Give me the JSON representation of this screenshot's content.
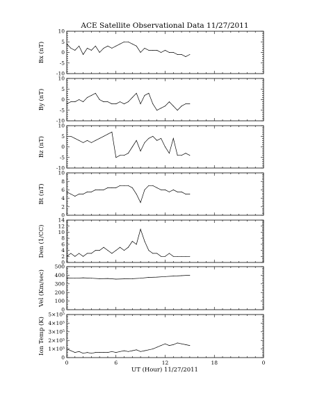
{
  "chart_data": {
    "type": "line",
    "title": "ACE Satellite Observational Data   11/27/2011",
    "xlabel": "UT (Hour)   11/27/2011",
    "xlim": [
      0,
      24
    ],
    "xticks": [
      "0",
      "6",
      "12",
      "18",
      "0"
    ],
    "panels": [
      {
        "ylabel": "Bx (nT)",
        "ylim": [
          -10,
          10
        ],
        "yticks": [
          "10",
          "5",
          "0",
          "-5",
          "-10"
        ],
        "series": [
          {
            "x": [
              0,
              0.5,
              1,
              1.5,
              2,
              2.5,
              3,
              3.5,
              4,
              4.5,
              5,
              5.5,
              6,
              6.5,
              7,
              7.5,
              8,
              8.5,
              9,
              9.5,
              10,
              10.5,
              11,
              11.5,
              12,
              12.5,
              13,
              13.5,
              14,
              14.5,
              15
            ],
            "y": [
              4,
              2,
              1,
              3,
              -1,
              2,
              1,
              3,
              0,
              2,
              3,
              2,
              3,
              4,
              5,
              5,
              4,
              3,
              0,
              2,
              1,
              1,
              1,
              0,
              1,
              0,
              0,
              -1,
              -1,
              -2,
              -1
            ]
          }
        ]
      },
      {
        "ylabel": "By (nT)",
        "ylim": [
          -10,
          10
        ],
        "yticks": [
          "10",
          "5",
          "0",
          "-5",
          "-10"
        ],
        "series": [
          {
            "x": [
              0,
              0.5,
              1,
              1.5,
              2,
              2.5,
              3,
              3.5,
              4,
              4.5,
              5,
              5.5,
              6,
              6.5,
              7,
              7.5,
              8,
              8.5,
              9,
              9.5,
              10,
              10.5,
              11,
              11.5,
              12,
              12.5,
              13,
              13.5,
              14,
              14.5,
              15
            ],
            "y": [
              -2,
              -1,
              -1,
              0,
              -1,
              1,
              2,
              3,
              0,
              -1,
              -1,
              -2,
              -2,
              -1,
              -2,
              -1,
              1,
              3,
              -2,
              2,
              3,
              -2,
              -5,
              -4,
              -3,
              -1,
              -3,
              -5,
              -3,
              -2,
              -2
            ]
          }
        ]
      },
      {
        "ylabel": "Bz (nT)",
        "ylim": [
          -10,
          10
        ],
        "yticks": [
          "10",
          "5",
          "0",
          "-5",
          "-10"
        ],
        "series": [
          {
            "x": [
              0,
              0.5,
              1,
              1.5,
              2,
              2.5,
              3,
              3.5,
              4,
              4.5,
              5,
              5.5,
              6,
              6.5,
              7,
              7.5,
              8,
              8.5,
              9,
              9.5,
              10,
              10.5,
              11,
              11.5,
              12,
              12.5,
              13,
              13.5,
              14,
              14.5,
              15
            ],
            "y": [
              5,
              5,
              4,
              3,
              2,
              3,
              2,
              3,
              4,
              5,
              6,
              7,
              -5,
              -4,
              -4,
              -3,
              0,
              3,
              -2,
              2,
              4,
              5,
              3,
              4,
              0,
              -3,
              4,
              -4,
              -4,
              -3,
              -4
            ]
          }
        ]
      },
      {
        "ylabel": "Bt (nT)",
        "ylim": [
          0,
          10
        ],
        "yticks": [
          "10",
          "8",
          "6",
          "4",
          "2",
          "0"
        ],
        "series": [
          {
            "x": [
              0,
              0.5,
              1,
              1.5,
              2,
              2.5,
              3,
              3.5,
              4,
              4.5,
              5,
              5.5,
              6,
              6.5,
              7,
              7.5,
              8,
              8.5,
              9,
              9.5,
              10,
              10.5,
              11,
              11.5,
              12,
              12.5,
              13,
              13.5,
              14,
              14.5,
              15
            ],
            "y": [
              5.5,
              5,
              4.5,
              5,
              5,
              5.5,
              5.5,
              6,
              6,
              6,
              6.5,
              6.5,
              6.5,
              7,
              7,
              7,
              6.5,
              5,
              3,
              6,
              7,
              7,
              6.5,
              6,
              6,
              5.5,
              6,
              5.5,
              5.5,
              5,
              5
            ]
          }
        ]
      },
      {
        "ylabel": "Den (1/CC)",
        "ylim": [
          0,
          14
        ],
        "yticks": [
          "14",
          "12",
          "10",
          "8",
          "6",
          "4",
          "2",
          "0"
        ],
        "series": [
          {
            "x": [
              0,
              0.5,
              1,
              1.5,
              2,
              2.5,
              3,
              3.5,
              4,
              4.5,
              5,
              5.5,
              6,
              6.5,
              7,
              7.5,
              8,
              8.5,
              9,
              9.5,
              10,
              10.5,
              11,
              11.5,
              12,
              12.5,
              13,
              13.5,
              14,
              14.5,
              15
            ],
            "y": [
              2,
              3,
              2,
              3,
              2,
              3,
              3,
              4,
              4,
              5,
              4,
              3,
              4,
              5,
              4,
              5,
              7,
              6,
              11,
              7,
              4,
              3,
              3,
              2,
              2,
              3,
              2,
              2,
              2,
              2,
              2
            ]
          }
        ]
      },
      {
        "ylabel": "Vel (Km/sec)",
        "ylim": [
          0,
          500
        ],
        "yticks": [
          "500",
          "400",
          "300",
          "200",
          "100",
          "0"
        ],
        "series": [
          {
            "x": [
              0,
              1,
              2,
              3,
              4,
              5,
              6,
              7,
              8,
              9,
              10,
              11,
              12,
              13,
              14,
              15
            ],
            "y": [
              370,
              365,
              370,
              365,
              360,
              362,
              355,
              358,
              360,
              365,
              375,
              378,
              385,
              390,
              395,
              400
            ]
          }
        ]
      },
      {
        "ylabel": "Ion Temp (K)",
        "ylim": [
          0,
          500000
        ],
        "yticks": [
          "5×10⁵",
          "4×10⁵",
          "3×10⁵",
          "2×10⁵",
          "1×10⁵",
          "0"
        ],
        "series": [
          {
            "x": [
              0,
              0.5,
              1,
              1.5,
              2,
              2.5,
              3,
              3.5,
              4,
              4.5,
              5,
              5.5,
              6,
              6.5,
              7,
              7.5,
              8,
              8.5,
              9,
              9.5,
              10,
              10.5,
              11,
              11.5,
              12,
              12.5,
              13,
              13.5,
              14,
              14.5,
              15
            ],
            "y": [
              100000,
              80000,
              60000,
              70000,
              50000,
              60000,
              50000,
              60000,
              60000,
              60000,
              60000,
              70000,
              60000,
              70000,
              80000,
              70000,
              80000,
              90000,
              70000,
              80000,
              90000,
              100000,
              120000,
              140000,
              160000,
              140000,
              150000,
              170000,
              160000,
              150000,
              140000
            ]
          }
        ]
      }
    ]
  }
}
